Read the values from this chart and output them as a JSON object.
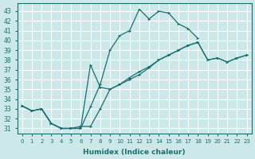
{
  "xlabel": "Humidex (Indice chaleur)",
  "bg_color": "#cce8e8",
  "grid_color": "#ffffff",
  "line_color": "#1a7070",
  "xlim": [
    -0.5,
    23.5
  ],
  "ylim": [
    30.5,
    43.8
  ],
  "xtick_labels": [
    "0",
    "1",
    "2",
    "3",
    "4",
    "5",
    "6",
    "7",
    "8",
    "9",
    "10",
    "11",
    "12",
    "13",
    "14",
    "15",
    "16",
    "17",
    "18",
    "19",
    "20",
    "21",
    "22",
    "23"
  ],
  "ytick_vals": [
    31,
    32,
    33,
    34,
    35,
    36,
    37,
    38,
    39,
    40,
    41,
    42,
    43
  ],
  "line1": {
    "x": [
      0,
      1,
      2,
      3,
      4,
      5,
      6,
      7,
      8,
      9,
      10,
      11,
      12,
      13,
      14,
      15,
      16,
      17,
      18
    ],
    "y": [
      33.3,
      32.8,
      33.0,
      31.5,
      31.0,
      31.0,
      31.0,
      33.2,
      35.5,
      39.0,
      40.5,
      41.0,
      43.2,
      42.2,
      43.0,
      42.8,
      41.7,
      41.2,
      40.2
    ]
  },
  "line2": {
    "x": [
      0,
      1,
      2,
      3,
      4,
      5,
      6,
      7,
      8,
      9,
      10,
      11,
      12,
      13,
      14,
      15,
      16,
      17,
      18,
      19,
      20,
      21,
      22,
      23
    ],
    "y": [
      33.3,
      32.8,
      33.0,
      31.5,
      31.0,
      31.0,
      31.2,
      31.2,
      33.0,
      35.0,
      35.5,
      36.2,
      36.8,
      37.3,
      38.0,
      38.5,
      39.0,
      39.5,
      39.8,
      38.0,
      38.2,
      37.8,
      38.2,
      38.5
    ]
  },
  "line3": {
    "x": [
      0,
      1,
      2,
      3,
      4,
      5,
      6,
      7,
      8,
      9,
      10,
      11,
      12,
      13,
      14,
      15,
      16,
      17,
      18,
      19,
      20,
      21,
      22,
      23
    ],
    "y": [
      33.3,
      32.8,
      33.0,
      31.5,
      31.0,
      31.0,
      31.0,
      37.5,
      35.2,
      35.0,
      35.5,
      36.0,
      36.5,
      37.2,
      38.0,
      38.5,
      39.0,
      39.5,
      39.8,
      38.0,
      38.2,
      37.8,
      38.2,
      38.5
    ]
  }
}
